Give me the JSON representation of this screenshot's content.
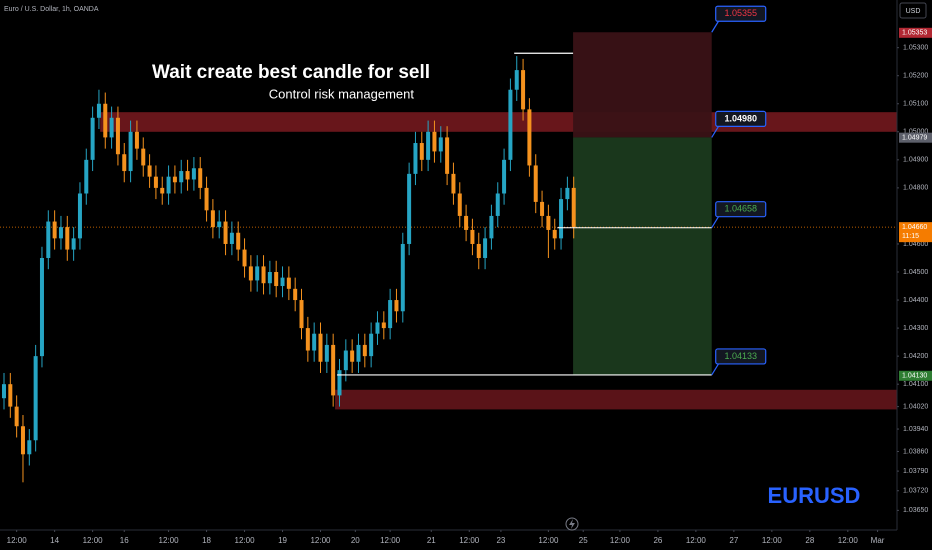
{
  "chart_data": {
    "type": "candlestick",
    "title": "Euro / U.S. Dollar, 1h, OANDA",
    "currency": "USD",
    "headline": "Wait create best candle for sell",
    "subline": "Control risk management",
    "symbol": "EURUSD",
    "up_color": "#26a5c4",
    "down_color": "#f5921e",
    "ylim": [
      1.0358,
      1.0547
    ],
    "xlim": [
      -0.63,
      141.07
    ],
    "grid": false,
    "yticks": [
      {
        "value": 1.053,
        "label": "1.05300"
      },
      {
        "value": 1.052,
        "label": "1.05200"
      },
      {
        "value": 1.051,
        "label": "1.05100"
      },
      {
        "value": 1.05,
        "label": "1.05000"
      },
      {
        "value": 1.049,
        "label": "1.04900"
      },
      {
        "value": 1.048,
        "label": "1.04800"
      },
      {
        "value": 1.046,
        "label": "1.04600"
      },
      {
        "value": 1.045,
        "label": "1.04500"
      },
      {
        "value": 1.044,
        "label": "1.04400"
      },
      {
        "value": 1.043,
        "label": "1.04300"
      },
      {
        "value": 1.042,
        "label": "1.04200"
      },
      {
        "value": 1.041,
        "label": "1.04100"
      },
      {
        "value": 1.0402,
        "label": "1.04020"
      },
      {
        "value": 1.0394,
        "label": "1.03940"
      },
      {
        "value": 1.0386,
        "label": "1.03860"
      },
      {
        "value": 1.0379,
        "label": "1.03790"
      },
      {
        "value": 1.0372,
        "label": "1.03720"
      },
      {
        "value": 1.0365,
        "label": "1.03650"
      }
    ],
    "xticks": [
      {
        "value": 2,
        "label": "12:00"
      },
      {
        "value": 8,
        "label": "14"
      },
      {
        "value": 14,
        "label": "12:00"
      },
      {
        "value": 19,
        "label": "16"
      },
      {
        "value": 26,
        "label": "12:00"
      },
      {
        "value": 32,
        "label": "18"
      },
      {
        "value": 38,
        "label": "12:00"
      },
      {
        "value": 44,
        "label": "19"
      },
      {
        "value": 50,
        "label": "12:00"
      },
      {
        "value": 55.5,
        "label": "20"
      },
      {
        "value": 61,
        "label": "12:00"
      },
      {
        "value": 67.5,
        "label": "21"
      },
      {
        "value": 73.5,
        "label": "12:00"
      },
      {
        "value": 78.5,
        "label": "23"
      },
      {
        "value": 86,
        "label": "12:00"
      },
      {
        "value": 91.5,
        "label": "25"
      },
      {
        "value": 97.3,
        "label": "12:00"
      },
      {
        "value": 103.3,
        "label": "26"
      },
      {
        "value": 109.3,
        "label": "12:00"
      },
      {
        "value": 115.3,
        "label": "27"
      },
      {
        "value": 121.3,
        "label": "12:00"
      },
      {
        "value": 127.3,
        "label": "28"
      },
      {
        "value": 133.3,
        "label": "12:00"
      },
      {
        "value": 138,
        "label": "Mar"
      }
    ],
    "open": [
      1.0405,
      1.041,
      1.0402,
      1.0395,
      1.0385,
      1.039,
      1.042,
      1.0455,
      1.0468,
      1.0462,
      1.0466,
      1.0458,
      1.0462,
      1.0478,
      1.049,
      1.0505,
      1.051,
      1.0498,
      1.0505,
      1.0492,
      1.0486,
      1.05,
      1.0494,
      1.0488,
      1.0484,
      1.048,
      1.0478,
      1.0484,
      1.0482,
      1.0486,
      1.0483,
      1.0487,
      1.048,
      1.0472,
      1.0466,
      1.0468,
      1.046,
      1.0464,
      1.0458,
      1.0452,
      1.0447,
      1.0452,
      1.0446,
      1.045,
      1.0445,
      1.0448,
      1.0444,
      1.044,
      1.043,
      1.0422,
      1.0428,
      1.0418,
      1.0424,
      1.0406,
      1.0415,
      1.0422,
      1.0418,
      1.0424,
      1.042,
      1.0428,
      1.0432,
      1.043,
      1.044,
      1.0436,
      1.046,
      1.0485,
      1.0496,
      1.049,
      1.05,
      1.0493,
      1.0498,
      1.0485,
      1.0478,
      1.047,
      1.0465,
      1.046,
      1.0455,
      1.0462,
      1.047,
      1.0478,
      1.049,
      1.0515,
      1.0522,
      1.0508,
      1.0488,
      1.0475,
      1.047,
      1.0465,
      1.0462,
      1.0476,
      1.048
    ],
    "high": [
      1.0414,
      1.0414,
      1.0406,
      1.0399,
      1.0394,
      1.0424,
      1.0459,
      1.0472,
      1.0472,
      1.047,
      1.047,
      1.0466,
      1.0482,
      1.0494,
      1.0509,
      1.0515,
      1.0514,
      1.0509,
      1.0509,
      1.0496,
      1.0504,
      1.0504,
      1.0498,
      1.0492,
      1.0488,
      1.0484,
      1.0488,
      1.0488,
      1.049,
      1.049,
      1.0491,
      1.0491,
      1.0484,
      1.0476,
      1.0472,
      1.0472,
      1.0468,
      1.0468,
      1.0462,
      1.0456,
      1.0456,
      1.0456,
      1.0454,
      1.0454,
      1.0452,
      1.0452,
      1.0448,
      1.0444,
      1.0434,
      1.0432,
      1.0432,
      1.0428,
      1.0428,
      1.0419,
      1.0426,
      1.0426,
      1.0428,
      1.0428,
      1.0432,
      1.0436,
      1.0436,
      1.0444,
      1.0444,
      1.0464,
      1.0489,
      1.05,
      1.05,
      1.0504,
      1.0504,
      1.0502,
      1.0502,
      1.0489,
      1.0482,
      1.0474,
      1.0469,
      1.0464,
      1.0466,
      1.0474,
      1.0482,
      1.0494,
      1.0519,
      1.0527,
      1.0526,
      1.0512,
      1.0492,
      1.0479,
      1.0474,
      1.0469,
      1.048,
      1.0484,
      1.0484
    ],
    "low": [
      1.0401,
      1.0398,
      1.0391,
      1.0375,
      1.0381,
      1.0386,
      1.0416,
      1.0451,
      1.0458,
      1.0458,
      1.0454,
      1.0454,
      1.0458,
      1.0474,
      1.0486,
      1.0501,
      1.0494,
      1.0494,
      1.0488,
      1.0482,
      1.0482,
      1.049,
      1.0484,
      1.048,
      1.0476,
      1.0474,
      1.0474,
      1.0478,
      1.0478,
      1.0479,
      1.0479,
      1.0476,
      1.0468,
      1.0462,
      1.0462,
      1.0456,
      1.0456,
      1.0454,
      1.0448,
      1.0443,
      1.0443,
      1.0442,
      1.0442,
      1.0441,
      1.0441,
      1.044,
      1.0436,
      1.0426,
      1.0418,
      1.0418,
      1.0414,
      1.0414,
      1.0402,
      1.0402,
      1.0411,
      1.0414,
      1.0414,
      1.0416,
      1.0416,
      1.0424,
      1.0426,
      1.0426,
      1.0432,
      1.0432,
      1.0456,
      1.0481,
      1.0486,
      1.0486,
      1.0489,
      1.0489,
      1.0481,
      1.0474,
      1.0466,
      1.0461,
      1.0456,
      1.0451,
      1.0451,
      1.0458,
      1.0466,
      1.0474,
      1.0486,
      1.0511,
      1.0504,
      1.0484,
      1.0471,
      1.0466,
      1.0455,
      1.0458,
      1.0458,
      1.0472,
      1.0462
    ],
    "close": [
      1.041,
      1.0402,
      1.0395,
      1.0385,
      1.039,
      1.042,
      1.0455,
      1.0468,
      1.0462,
      1.0466,
      1.0458,
      1.0462,
      1.0478,
      1.049,
      1.0505,
      1.051,
      1.0498,
      1.0505,
      1.0492,
      1.0486,
      1.05,
      1.0494,
      1.0488,
      1.0484,
      1.048,
      1.0478,
      1.0484,
      1.0482,
      1.0486,
      1.0483,
      1.0487,
      1.048,
      1.0472,
      1.0466,
      1.0468,
      1.046,
      1.0464,
      1.0458,
      1.0452,
      1.0447,
      1.0452,
      1.0446,
      1.045,
      1.0445,
      1.0448,
      1.0444,
      1.044,
      1.043,
      1.0422,
      1.0428,
      1.0418,
      1.0424,
      1.0406,
      1.0415,
      1.0422,
      1.0418,
      1.0424,
      1.042,
      1.0428,
      1.0432,
      1.043,
      1.044,
      1.0436,
      1.046,
      1.0485,
      1.0496,
      1.049,
      1.05,
      1.0493,
      1.0498,
      1.0485,
      1.0478,
      1.047,
      1.0465,
      1.046,
      1.0455,
      1.0462,
      1.047,
      1.0478,
      1.049,
      1.0515,
      1.0522,
      1.0508,
      1.0488,
      1.0475,
      1.047,
      1.0465,
      1.0462,
      1.0476,
      1.048,
      1.0466
    ],
    "zones": [
      {
        "low": 1.05,
        "high": 1.0507,
        "x_start": 15.2,
        "color": "#7a1a20"
      },
      {
        "low": 1.0401,
        "high": 1.0408,
        "x_start": 52.3,
        "color": "#6a161c"
      }
    ],
    "position": {
      "x": [
        89.9,
        111.8
      ],
      "stop": {
        "value": 1.05355,
        "label": "1.05355",
        "label_color": "#f23645"
      },
      "entry": {
        "value": 1.0498,
        "label": "1.04980",
        "label_color": "#ffffff"
      },
      "current": {
        "value": 1.04658,
        "label": "1.04658",
        "label_color": "#4caf50",
        "x_start": 87.4
      },
      "target": {
        "value": 1.04133,
        "label": "1.04133",
        "label_color": "#4caf50",
        "x_start": 52.6
      },
      "high_line": {
        "value": 1.0528,
        "x": [
          80.6,
          89.9
        ]
      },
      "risk_color": "#3a1216",
      "reward_color": "#1b3a1d"
    },
    "last_price": {
      "value": 1.0466,
      "color": "#f57c00"
    },
    "axis_tags": [
      {
        "value": 1.05353,
        "label": "1.05353",
        "color": "#b22833"
      },
      {
        "value": 1.04979,
        "label": "1.04979",
        "color": "#5d606b"
      },
      {
        "value": 1.0466,
        "label": "1.04660",
        "sub": "11:15",
        "color": "#f57c00"
      },
      {
        "value": 1.0413,
        "label": "1.04130",
        "color": "#2e7d32"
      }
    ]
  }
}
